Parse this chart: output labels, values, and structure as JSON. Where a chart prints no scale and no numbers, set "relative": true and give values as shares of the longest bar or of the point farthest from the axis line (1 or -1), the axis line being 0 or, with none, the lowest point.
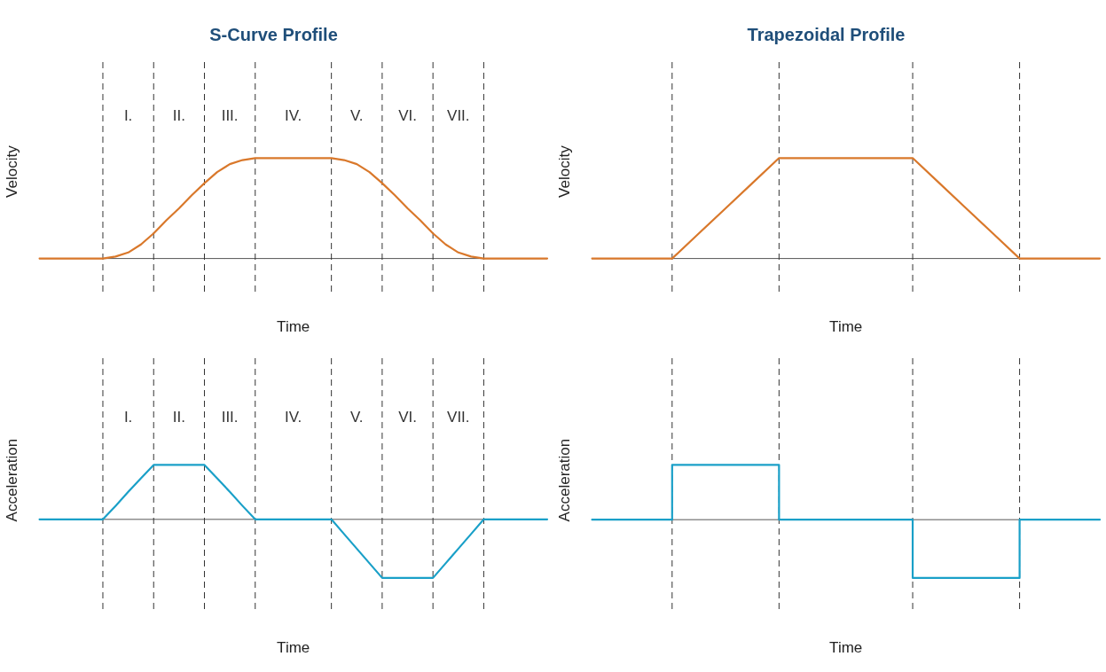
{
  "chart_data": [
    {
      "type": "line",
      "title": "S-Curve Profile",
      "xlabel": "Time",
      "ylabel": "Velocity",
      "relative": true,
      "grid": "x",
      "legend": false,
      "marker": "none",
      "line_style": "solid",
      "categories": [
        null,
        null,
        null,
        null,
        null,
        null,
        null,
        null,
        null,
        null,
        null,
        null,
        null,
        null,
        null,
        null,
        null,
        null,
        null,
        null,
        null,
        null,
        null,
        null,
        null,
        null,
        null,
        null,
        null,
        null,
        null,
        null,
        null,
        null,
        null,
        null,
        null,
        null,
        null,
        null,
        null
      ],
      "series": [
        {
          "color": "#d9782b",
          "values": [
            0,
            0,
            0,
            0,
            0,
            0,
            0.02,
            0.06,
            0.14,
            0.25,
            0.38,
            0.5,
            0.63,
            0.75,
            0.86,
            0.94,
            0.98,
            1,
            1,
            1,
            1,
            1,
            1,
            1,
            0.98,
            0.94,
            0.86,
            0.75,
            0.63,
            0.5,
            0.38,
            0.25,
            0.14,
            0.06,
            0.02,
            0,
            0,
            0,
            0,
            0,
            0
          ]
        }
      ],
      "annotations": [
        "I.",
        "II.",
        "III.",
        "IV.",
        "V.",
        "VI.",
        "VII."
      ]
    },
    {
      "type": "line",
      "title": "Trapezoidal Profile",
      "xlabel": "Time",
      "ylabel": "Velocity",
      "relative": true,
      "grid": "x",
      "legend": false,
      "marker": "none",
      "line_style": "solid",
      "categories": [
        null,
        null,
        null,
        null,
        null,
        null,
        null,
        null,
        null,
        null,
        null,
        null,
        null,
        null,
        null,
        null,
        null,
        null,
        null,
        null
      ],
      "series": [
        {
          "color": "#d9782b",
          "values": [
            0,
            0,
            0,
            0,
            0.25,
            0.5,
            0.75,
            1,
            1,
            1,
            1,
            1,
            1,
            0.75,
            0.5,
            0.25,
            0,
            0,
            0,
            0
          ]
        }
      ]
    },
    {
      "type": "line",
      "xlabel": "Time",
      "ylabel": "Acceleration",
      "relative": true,
      "grid": "x",
      "legend": false,
      "marker": "none",
      "line_style": "solid",
      "categories": [
        null,
        null,
        null,
        null,
        null,
        null,
        null,
        null,
        null,
        null,
        null,
        null,
        null,
        null,
        null,
        null,
        null,
        null,
        null,
        null,
        null,
        null,
        null,
        null,
        null,
        null,
        null,
        null,
        null,
        null,
        null,
        null,
        null,
        null,
        null,
        null,
        null,
        null,
        null,
        null,
        null
      ],
      "series": [
        {
          "color": "#1aa0c8",
          "values": [
            0,
            0,
            0,
            0,
            0,
            0,
            0.23,
            0.47,
            0.7,
            0.93,
            0.93,
            0.93,
            0.93,
            0.93,
            0.7,
            0.47,
            0.23,
            0,
            0,
            0,
            0,
            0,
            0,
            0,
            -0.25,
            -0.5,
            -0.75,
            -1,
            -1,
            -1,
            -1,
            -1,
            -0.75,
            -0.5,
            -0.25,
            0,
            0,
            0,
            0,
            0,
            0
          ]
        }
      ],
      "annotations": [
        "I.",
        "II.",
        "III.",
        "IV.",
        "V.",
        "VI.",
        "VII."
      ]
    },
    {
      "type": "step",
      "xlabel": "Time",
      "ylabel": "Acceleration",
      "relative": true,
      "grid": "x",
      "legend": false,
      "marker": "none",
      "line_style": "solid",
      "categories": [
        null,
        null,
        null,
        null,
        null,
        null,
        null,
        null,
        null,
        null,
        null,
        null,
        null,
        null,
        null,
        null,
        null,
        null,
        null,
        null
      ],
      "series": [
        {
          "color": "#1aa0c8",
          "values": [
            0,
            0,
            0,
            0.94,
            0.94,
            0.94,
            0.94,
            0,
            0,
            0,
            0,
            0,
            -1,
            -1,
            -1,
            -1,
            0,
            0,
            0,
            0
          ]
        }
      ]
    }
  ]
}
